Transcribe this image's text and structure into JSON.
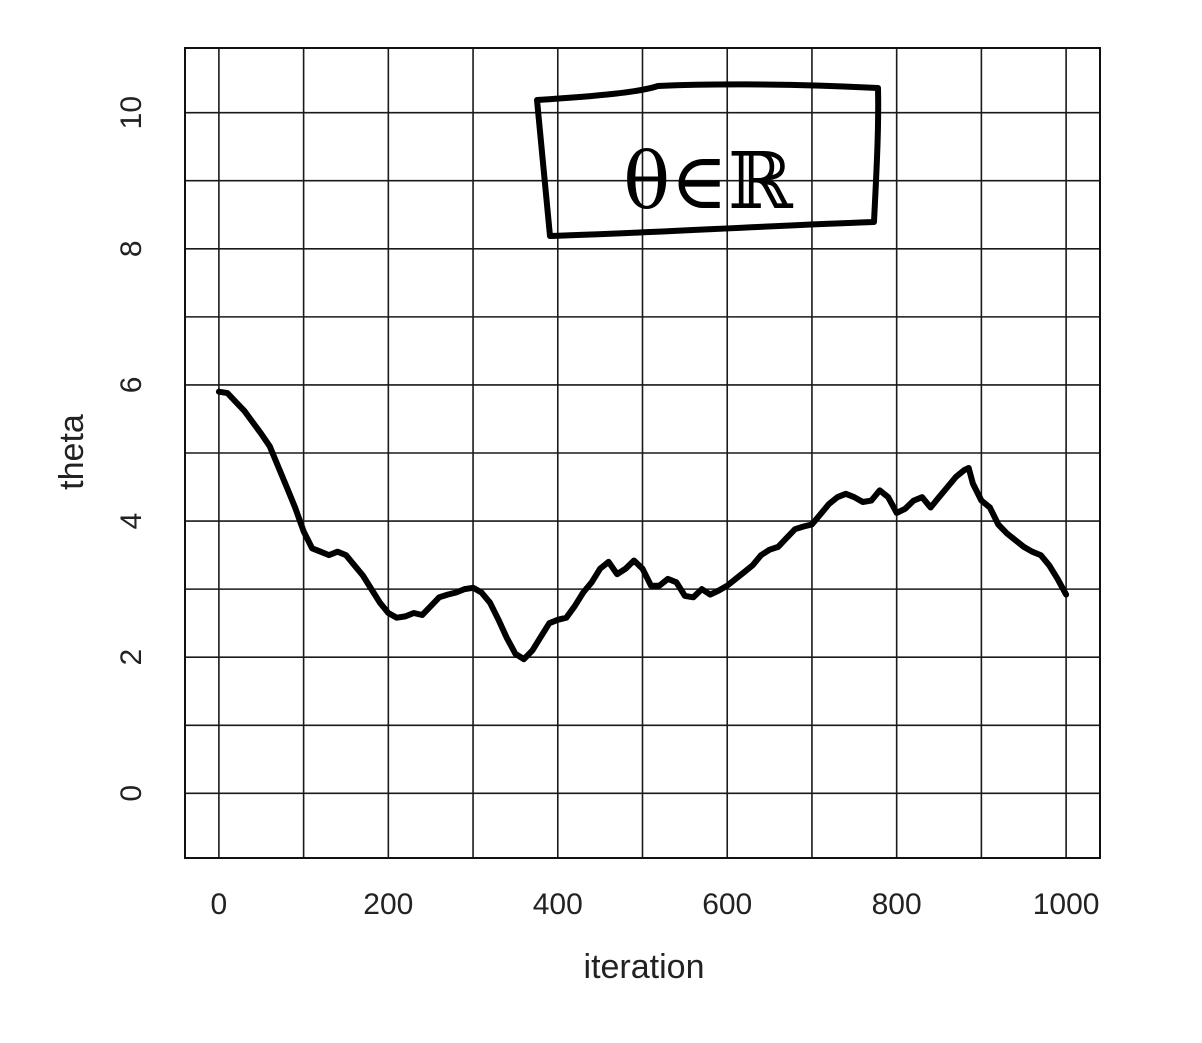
{
  "chart_data": {
    "type": "line",
    "xlabel": "iteration",
    "ylabel": "theta",
    "xlim": [
      -40,
      1040
    ],
    "ylim": [
      -0.95,
      10.95
    ],
    "x_ticks": [
      0,
      200,
      400,
      600,
      800,
      1000
    ],
    "x_tick_labels": [
      "0",
      "200",
      "400",
      "600",
      "800",
      "1000"
    ],
    "y_ticks": [
      0,
      2,
      4,
      6,
      8,
      10
    ],
    "y_tick_labels": [
      "0",
      "2",
      "4",
      "6",
      "8",
      "10"
    ],
    "grid": true,
    "grid_x_step": 100,
    "grid_y_step": 1,
    "annotation": "θ∈ℝ",
    "series": [
      {
        "x": [
          0,
          10,
          20,
          30,
          40,
          50,
          60,
          70,
          80,
          90,
          100,
          110,
          120,
          130,
          140,
          150,
          160,
          170,
          180,
          190,
          200,
          210,
          220,
          230,
          240,
          250,
          260,
          270,
          280,
          290,
          300,
          310,
          320,
          330,
          340,
          350,
          360,
          370,
          380,
          390,
          400,
          410,
          420,
          430,
          440,
          450,
          460,
          470,
          480,
          490,
          500,
          510,
          520,
          530,
          540,
          550,
          560,
          570,
          580,
          590,
          600,
          610,
          620,
          630,
          640,
          650,
          660,
          670,
          680,
          690,
          700,
          710,
          720,
          730,
          740,
          750,
          760,
          770,
          780,
          790,
          800,
          810,
          820,
          830,
          840,
          850,
          860,
          870,
          880,
          885,
          890,
          900,
          910,
          920,
          930,
          940,
          950,
          960,
          970,
          980,
          990,
          1000
        ],
        "values": [
          5.9,
          5.88,
          5.75,
          5.62,
          5.45,
          5.28,
          5.1,
          4.8,
          4.5,
          4.2,
          3.85,
          3.6,
          3.55,
          3.5,
          3.55,
          3.5,
          3.35,
          3.2,
          3.0,
          2.8,
          2.65,
          2.58,
          2.6,
          2.65,
          2.62,
          2.75,
          2.88,
          2.92,
          2.95,
          3.0,
          3.02,
          2.95,
          2.8,
          2.55,
          2.28,
          2.05,
          1.97,
          2.1,
          2.3,
          2.5,
          2.55,
          2.58,
          2.75,
          2.95,
          3.1,
          3.3,
          3.4,
          3.22,
          3.3,
          3.42,
          3.3,
          3.05,
          3.05,
          3.15,
          3.1,
          2.9,
          2.88,
          3.0,
          2.92,
          2.98,
          3.05,
          3.15,
          3.25,
          3.35,
          3.5,
          3.58,
          3.62,
          3.75,
          3.88,
          3.92,
          3.95,
          4.1,
          4.25,
          4.35,
          4.4,
          4.35,
          4.28,
          4.3,
          4.45,
          4.35,
          4.12,
          4.18,
          4.3,
          4.35,
          4.2,
          4.35,
          4.5,
          4.65,
          4.75,
          4.78,
          4.55,
          4.3,
          4.2,
          3.95,
          3.82,
          3.72,
          3.62,
          3.55,
          3.5,
          3.35,
          3.15,
          2.92
        ]
      }
    ]
  }
}
